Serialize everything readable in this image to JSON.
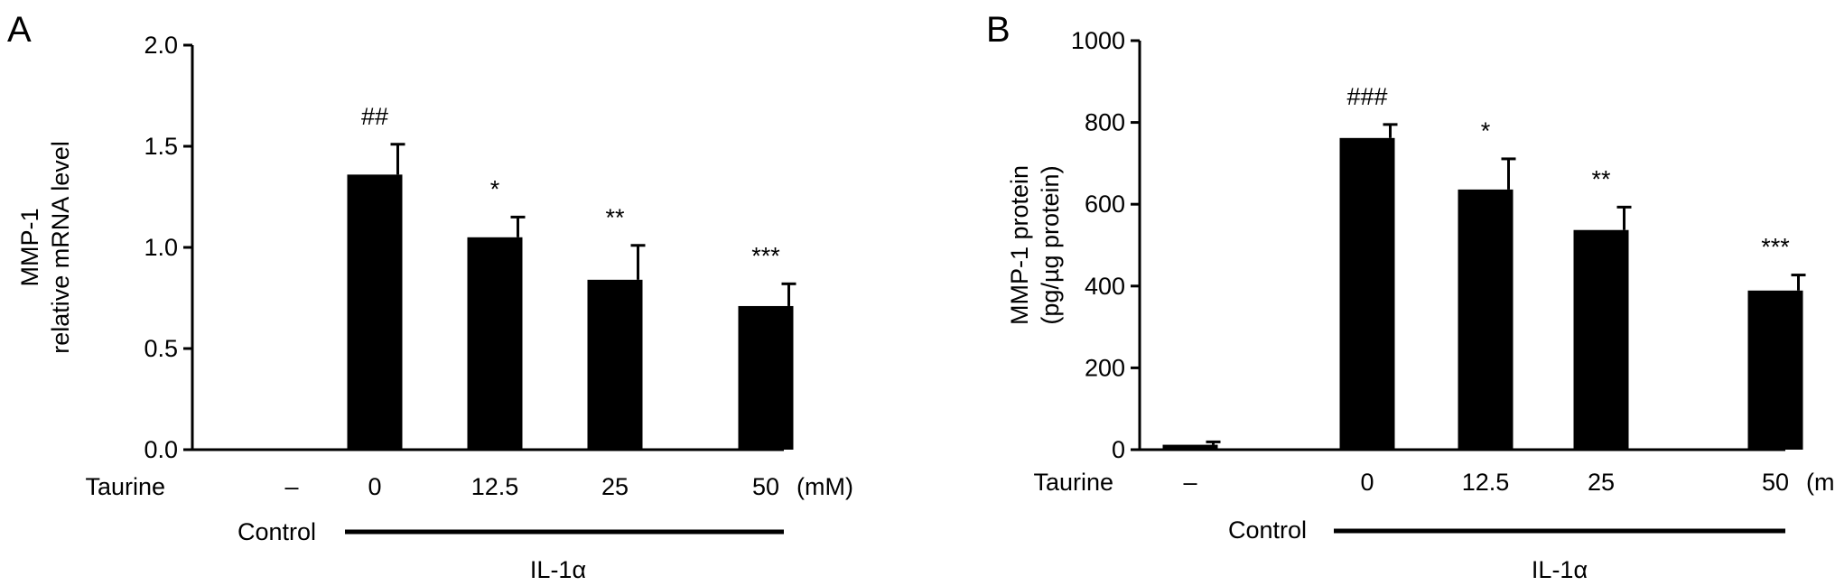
{
  "chart_data": [
    {
      "type": "bar",
      "panel": "A",
      "ylabel_lines": [
        "MMP-1",
        "relative mRNA level"
      ],
      "ylim": [
        0,
        2.0
      ],
      "yticks": [
        0.0,
        0.5,
        1.0,
        1.5,
        2.0
      ],
      "ytick_labels": [
        "0.0",
        "0.5",
        "1.0",
        "1.5",
        "2.0"
      ],
      "x_prefix": "Taurine",
      "categories": [
        "–",
        "0",
        "12.5",
        "25",
        "50"
      ],
      "units": "(mM)",
      "values": [
        0.0,
        1.36,
        1.05,
        0.84,
        0.71
      ],
      "errors": [
        0.0,
        0.15,
        0.1,
        0.17,
        0.11
      ],
      "annotations": [
        "",
        "##",
        "*",
        "**",
        "***"
      ],
      "control_label": "Control",
      "treatment_label": "IL-1α",
      "bar_color": "#000000",
      "grid": false
    },
    {
      "type": "bar",
      "panel": "B",
      "ylabel_lines": [
        "MMP-1 protein",
        "(pg/µg protein)"
      ],
      "ylim": [
        0,
        1000
      ],
      "yticks": [
        0,
        200,
        400,
        600,
        800,
        1000
      ],
      "ytick_labels": [
        "0",
        "200",
        "400",
        "600",
        "800",
        "1000"
      ],
      "x_prefix": "Taurine",
      "categories": [
        "–",
        "0",
        "12.5",
        "25",
        "50"
      ],
      "units": "(mM)",
      "values": [
        12,
        762,
        636,
        537,
        389
      ],
      "errors": [
        7,
        33,
        75,
        56,
        38
      ],
      "annotations": [
        "",
        "###",
        "*",
        "**",
        "***"
      ],
      "control_label": "Control",
      "treatment_label": "IL-1α",
      "bar_color": "#000000",
      "grid": false
    }
  ]
}
